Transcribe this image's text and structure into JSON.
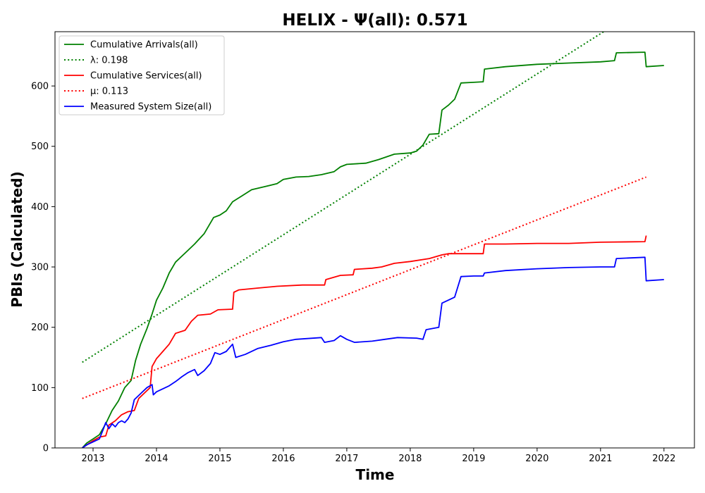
{
  "chart_data": {
    "type": "line",
    "title": "HELIX -  Ψ(all): 0.571",
    "xlabel": "Time",
    "ylabel": "PBIs (Calculated)",
    "xlim": [
      2012.4,
      2022.48
    ],
    "ylim": [
      0,
      690
    ],
    "xticks": [
      2013,
      2014,
      2015,
      2016,
      2017,
      2018,
      2019,
      2020,
      2021,
      2022
    ],
    "yticks": [
      0,
      100,
      200,
      300,
      400,
      500,
      600
    ],
    "grid": false,
    "legend_position": "top-left",
    "series": [
      {
        "name": "Cumulative Arrivals(all)",
        "color": "#008000",
        "style": "solid",
        "points": [
          [
            2012.83,
            0
          ],
          [
            2012.9,
            8
          ],
          [
            2013.0,
            15
          ],
          [
            2013.1,
            22
          ],
          [
            2013.2,
            40
          ],
          [
            2013.3,
            62
          ],
          [
            2013.4,
            78
          ],
          [
            2013.5,
            100
          ],
          [
            2013.6,
            112
          ],
          [
            2013.67,
            145
          ],
          [
            2013.75,
            172
          ],
          [
            2013.85,
            198
          ],
          [
            2013.93,
            222
          ],
          [
            2014.0,
            245
          ],
          [
            2014.1,
            265
          ],
          [
            2014.2,
            290
          ],
          [
            2014.3,
            308
          ],
          [
            2014.4,
            318
          ],
          [
            2014.5,
            328
          ],
          [
            2014.6,
            338
          ],
          [
            2014.75,
            355
          ],
          [
            2014.9,
            382
          ],
          [
            2015.0,
            386
          ],
          [
            2015.1,
            393
          ],
          [
            2015.2,
            408
          ],
          [
            2015.35,
            418
          ],
          [
            2015.5,
            428
          ],
          [
            2015.7,
            433
          ],
          [
            2015.9,
            438
          ],
          [
            2016.0,
            445
          ],
          [
            2016.2,
            449
          ],
          [
            2016.4,
            450
          ],
          [
            2016.6,
            453
          ],
          [
            2016.8,
            458
          ],
          [
            2016.9,
            466
          ],
          [
            2017.0,
            470
          ],
          [
            2017.3,
            472
          ],
          [
            2017.5,
            478
          ],
          [
            2017.75,
            487
          ],
          [
            2018.0,
            489
          ],
          [
            2018.1,
            492
          ],
          [
            2018.2,
            502
          ],
          [
            2018.3,
            520
          ],
          [
            2018.45,
            521
          ],
          [
            2018.5,
            560
          ],
          [
            2018.6,
            568
          ],
          [
            2018.7,
            578
          ],
          [
            2018.8,
            605
          ],
          [
            2019.0,
            606
          ],
          [
            2019.15,
            607
          ],
          [
            2019.17,
            628
          ],
          [
            2019.5,
            632
          ],
          [
            2020.0,
            636
          ],
          [
            2020.5,
            638
          ],
          [
            2021.0,
            640
          ],
          [
            2021.22,
            642
          ],
          [
            2021.25,
            655
          ],
          [
            2021.7,
            656
          ],
          [
            2021.72,
            632
          ],
          [
            2022.0,
            634
          ]
        ]
      },
      {
        "name": "λ: 0.198",
        "color": "#008000",
        "style": "dotted",
        "points": [
          [
            2012.83,
            142
          ],
          [
            2021.05,
            690
          ]
        ]
      },
      {
        "name": "Cumulative Services(all)",
        "color": "#ff0000",
        "style": "solid",
        "points": [
          [
            2012.83,
            0
          ],
          [
            2013.0,
            12
          ],
          [
            2013.05,
            15
          ],
          [
            2013.1,
            18
          ],
          [
            2013.2,
            20
          ],
          [
            2013.25,
            38
          ],
          [
            2013.35,
            45
          ],
          [
            2013.45,
            55
          ],
          [
            2013.55,
            60
          ],
          [
            2013.65,
            62
          ],
          [
            2013.72,
            82
          ],
          [
            2013.8,
            90
          ],
          [
            2013.9,
            100
          ],
          [
            2013.93,
            135
          ],
          [
            2014.0,
            148
          ],
          [
            2014.1,
            160
          ],
          [
            2014.2,
            172
          ],
          [
            2014.3,
            190
          ],
          [
            2014.45,
            195
          ],
          [
            2014.55,
            210
          ],
          [
            2014.65,
            220
          ],
          [
            2014.85,
            222
          ],
          [
            2014.97,
            229
          ],
          [
            2015.2,
            230
          ],
          [
            2015.22,
            258
          ],
          [
            2015.3,
            262
          ],
          [
            2015.6,
            265
          ],
          [
            2015.9,
            268
          ],
          [
            2016.3,
            270
          ],
          [
            2016.65,
            270
          ],
          [
            2016.67,
            279
          ],
          [
            2016.9,
            286
          ],
          [
            2017.1,
            287
          ],
          [
            2017.12,
            296
          ],
          [
            2017.4,
            298
          ],
          [
            2017.55,
            300
          ],
          [
            2017.75,
            306
          ],
          [
            2018.0,
            309
          ],
          [
            2018.3,
            314
          ],
          [
            2018.5,
            320
          ],
          [
            2018.6,
            322
          ],
          [
            2019.0,
            322
          ],
          [
            2019.15,
            322
          ],
          [
            2019.17,
            338
          ],
          [
            2019.5,
            338
          ],
          [
            2020.0,
            339
          ],
          [
            2020.5,
            339
          ],
          [
            2021.0,
            341
          ],
          [
            2021.7,
            342
          ],
          [
            2021.72,
            352
          ]
        ]
      },
      {
        "name": "μ: 0.113",
        "color": "#ff0000",
        "style": "dotted",
        "points": [
          [
            2012.83,
            82
          ],
          [
            2021.72,
            449
          ]
        ]
      },
      {
        "name": "Measured System Size(all)",
        "color": "#0000ff",
        "style": "solid",
        "points": [
          [
            2012.83,
            0
          ],
          [
            2012.9,
            5
          ],
          [
            2013.0,
            10
          ],
          [
            2013.1,
            15
          ],
          [
            2013.15,
            28
          ],
          [
            2013.2,
            42
          ],
          [
            2013.25,
            32
          ],
          [
            2013.3,
            40
          ],
          [
            2013.35,
            35
          ],
          [
            2013.4,
            42
          ],
          [
            2013.45,
            45
          ],
          [
            2013.5,
            42
          ],
          [
            2013.55,
            48
          ],
          [
            2013.6,
            58
          ],
          [
            2013.65,
            80
          ],
          [
            2013.75,
            90
          ],
          [
            2013.85,
            100
          ],
          [
            2013.93,
            105
          ],
          [
            2013.95,
            88
          ],
          [
            2014.0,
            93
          ],
          [
            2014.1,
            98
          ],
          [
            2014.2,
            103
          ],
          [
            2014.3,
            110
          ],
          [
            2014.4,
            118
          ],
          [
            2014.5,
            125
          ],
          [
            2014.6,
            130
          ],
          [
            2014.65,
            120
          ],
          [
            2014.75,
            128
          ],
          [
            2014.85,
            140
          ],
          [
            2014.92,
            158
          ],
          [
            2015.0,
            155
          ],
          [
            2015.1,
            160
          ],
          [
            2015.2,
            172
          ],
          [
            2015.25,
            150
          ],
          [
            2015.4,
            155
          ],
          [
            2015.6,
            165
          ],
          [
            2015.8,
            170
          ],
          [
            2016.0,
            176
          ],
          [
            2016.2,
            180
          ],
          [
            2016.6,
            183
          ],
          [
            2016.65,
            175
          ],
          [
            2016.8,
            178
          ],
          [
            2016.9,
            186
          ],
          [
            2017.0,
            180
          ],
          [
            2017.12,
            175
          ],
          [
            2017.4,
            177
          ],
          [
            2017.6,
            180
          ],
          [
            2017.8,
            183
          ],
          [
            2018.1,
            182
          ],
          [
            2018.2,
            180
          ],
          [
            2018.25,
            196
          ],
          [
            2018.45,
            200
          ],
          [
            2018.5,
            240
          ],
          [
            2018.7,
            250
          ],
          [
            2018.8,
            284
          ],
          [
            2019.0,
            285
          ],
          [
            2019.1,
            285
          ],
          [
            2019.15,
            285
          ],
          [
            2019.17,
            290
          ],
          [
            2019.5,
            294
          ],
          [
            2020.0,
            297
          ],
          [
            2020.5,
            299
          ],
          [
            2021.0,
            300
          ],
          [
            2021.22,
            300
          ],
          [
            2021.25,
            314
          ],
          [
            2021.7,
            316
          ],
          [
            2021.72,
            277
          ],
          [
            2022.0,
            279
          ]
        ]
      }
    ]
  }
}
